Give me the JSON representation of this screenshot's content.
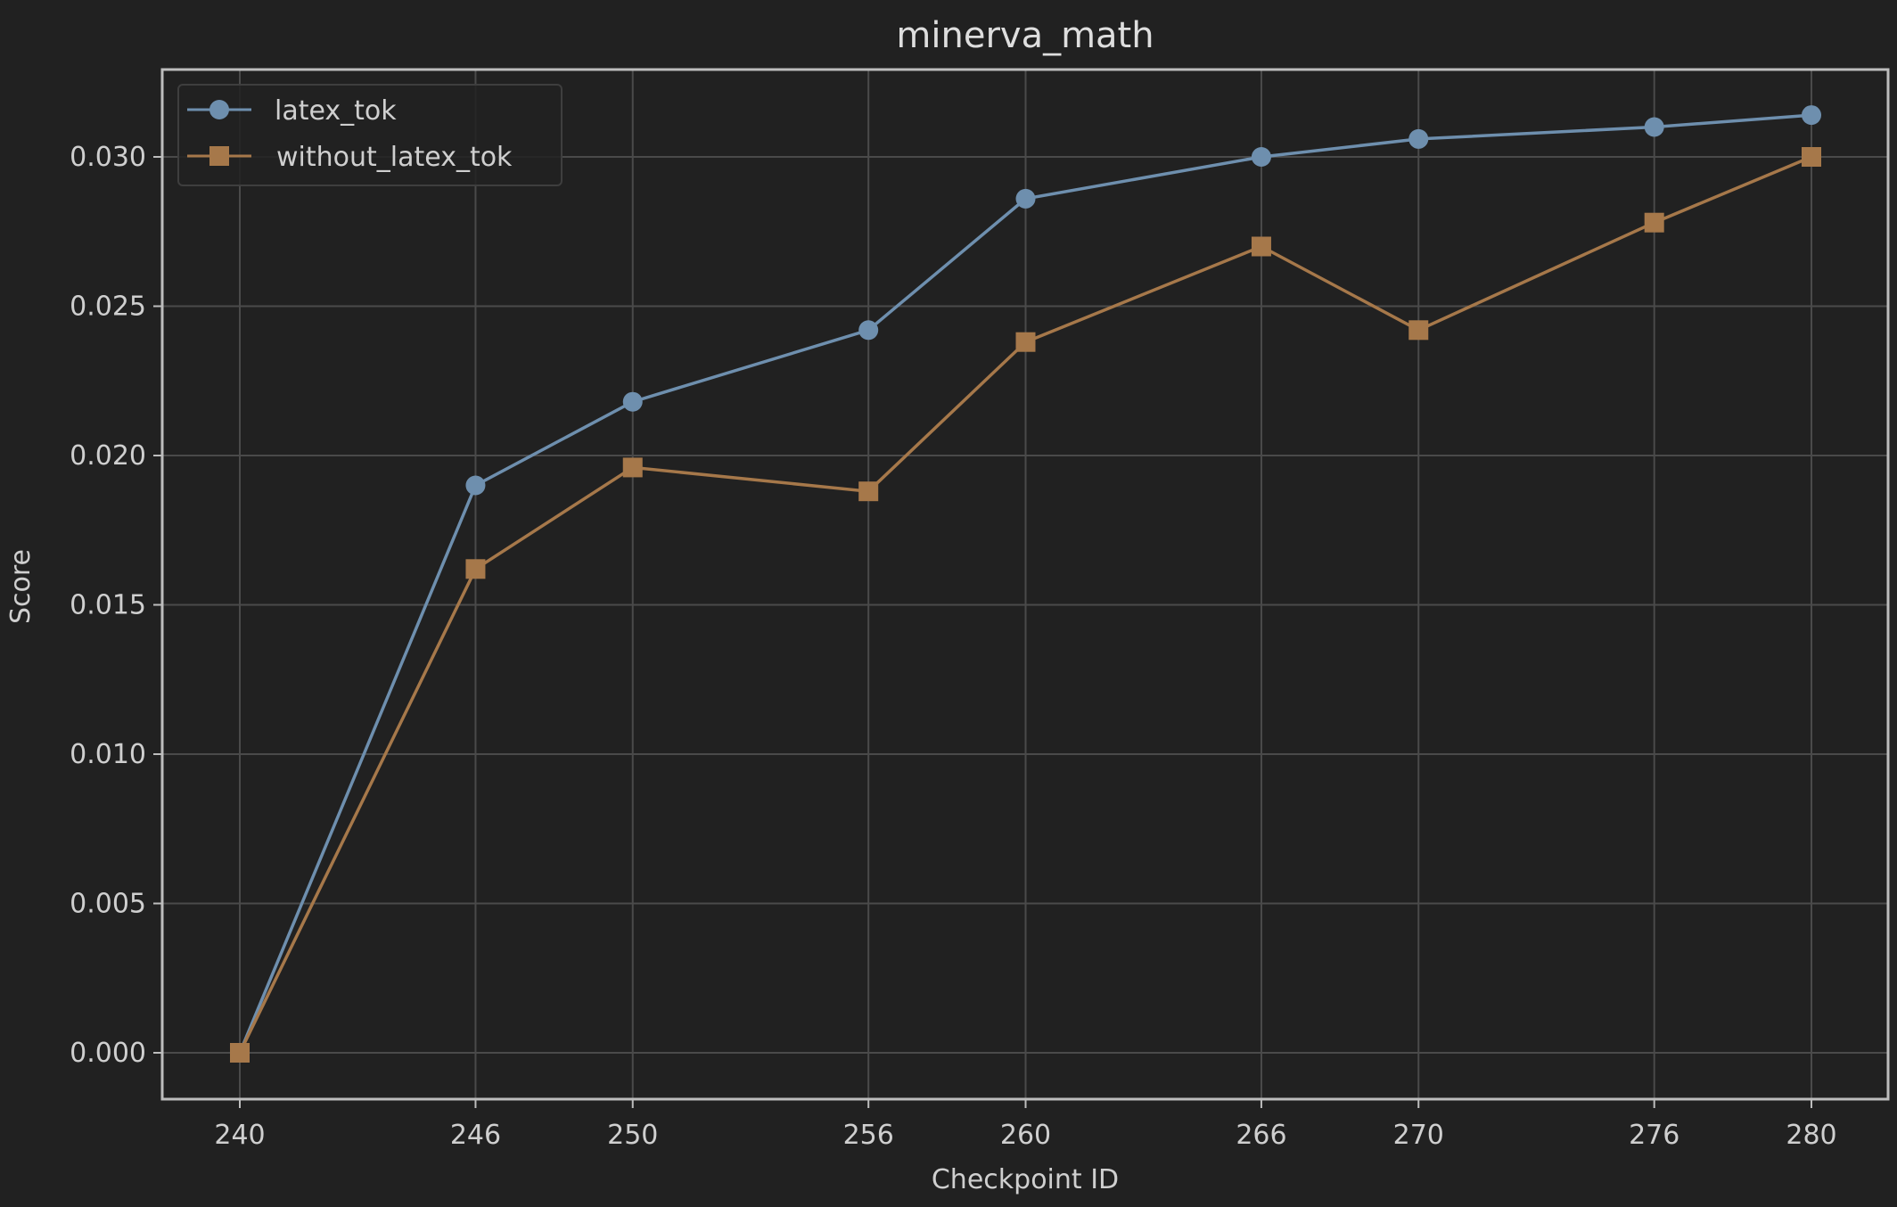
{
  "chart_data": {
    "type": "line",
    "title": "minerva_math",
    "xlabel": "Checkpoint ID",
    "ylabel": "Score",
    "x": [
      240,
      246,
      250,
      256,
      260,
      266,
      270,
      276,
      280
    ],
    "x_tick_labels": [
      "240",
      "246",
      "250",
      "256",
      "260",
      "266",
      "270",
      "276",
      "280"
    ],
    "y_tick_labels": [
      "0.000",
      "0.005",
      "0.010",
      "0.015",
      "0.020",
      "0.025",
      "0.030"
    ],
    "y_ticks": [
      0.0,
      0.005,
      0.01,
      0.015,
      0.02,
      0.025,
      0.03
    ],
    "ylim": [
      -0.0015,
      0.0329
    ],
    "xlim": [
      238,
      282
    ],
    "grid": true,
    "legend_position": "upper left",
    "series": [
      {
        "name": "latex_tok",
        "marker": "circle",
        "color": "#6e8fae",
        "values": [
          0.0,
          0.019,
          0.0218,
          0.0242,
          0.0286,
          0.03,
          0.0306,
          0.031,
          0.0314
        ]
      },
      {
        "name": "without_latex_tok",
        "marker": "square",
        "color": "#a6784a",
        "values": [
          0.0,
          0.0162,
          0.0196,
          0.0188,
          0.0238,
          0.027,
          0.0242,
          0.0278,
          0.03
        ]
      }
    ]
  },
  "colors": {
    "background": "#212121",
    "grid": "#4a4a4a",
    "axes": "#bdbdbd",
    "text": "#cfcfcf"
  }
}
